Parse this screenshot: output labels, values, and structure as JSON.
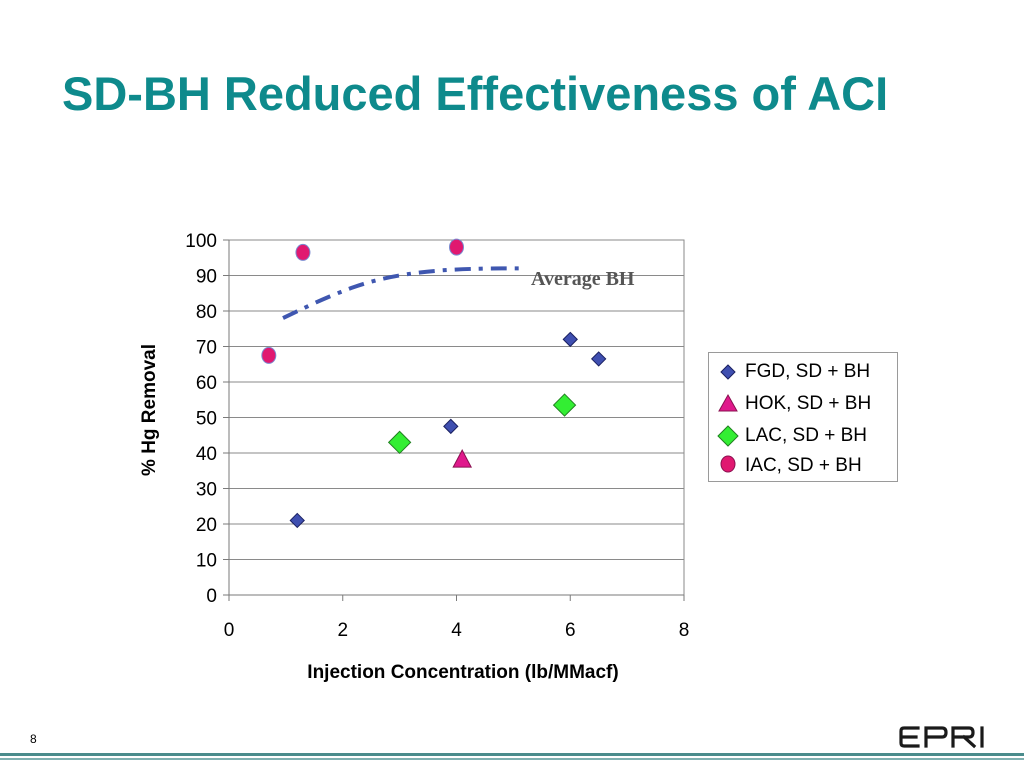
{
  "title": "SD-BH Reduced Effectiveness of ACI",
  "page_number": "8",
  "brand": {
    "name": "EPRI",
    "title_color": "#0e8a8c",
    "footer_color": "#4a8c8c"
  },
  "chart_data": {
    "type": "scatter",
    "xlabel": "Injection Concentration (lb/MMacf)",
    "ylabel": "% Hg Removal",
    "xlim": [
      0,
      8
    ],
    "ylim": [
      0,
      100
    ],
    "xticks": [
      "0",
      "2",
      "4",
      "6",
      "8"
    ],
    "yticks": [
      "0",
      "10",
      "20",
      "30",
      "40",
      "50",
      "60",
      "70",
      "80",
      "90",
      "100"
    ],
    "grid": {
      "horizontal": true,
      "vertical": false
    },
    "legend_position": "right",
    "series": [
      {
        "name": "FGD, SD + BH",
        "marker": "diamond",
        "color": "#3f4fb0",
        "points": [
          [
            1.2,
            21
          ],
          [
            3.9,
            47.5
          ],
          [
            6.0,
            72
          ],
          [
            6.5,
            66.5
          ]
        ]
      },
      {
        "name": "HOK, SD + BH",
        "marker": "triangle",
        "color": "#e0198c",
        "points": [
          [
            4.1,
            38
          ]
        ]
      },
      {
        "name": "LAC, SD + BH",
        "marker": "diamond-large",
        "color": "#33ee33",
        "points": [
          [
            3.0,
            43
          ],
          [
            5.9,
            53.5
          ]
        ]
      },
      {
        "name": "IAC, SD + BH",
        "marker": "circle",
        "color": "#e01870",
        "points": [
          [
            0.7,
            67.5
          ],
          [
            1.3,
            96.5
          ],
          [
            4.0,
            98
          ]
        ]
      }
    ],
    "trend": {
      "label": "Average BH",
      "style": "dash-dot",
      "color": "#3f57b0",
      "points": [
        [
          0.95,
          78
        ],
        [
          1.8,
          84.5
        ],
        [
          2.6,
          89
        ],
        [
          3.5,
          91.3
        ],
        [
          4.4,
          92
        ],
        [
          5.2,
          92
        ]
      ]
    }
  }
}
